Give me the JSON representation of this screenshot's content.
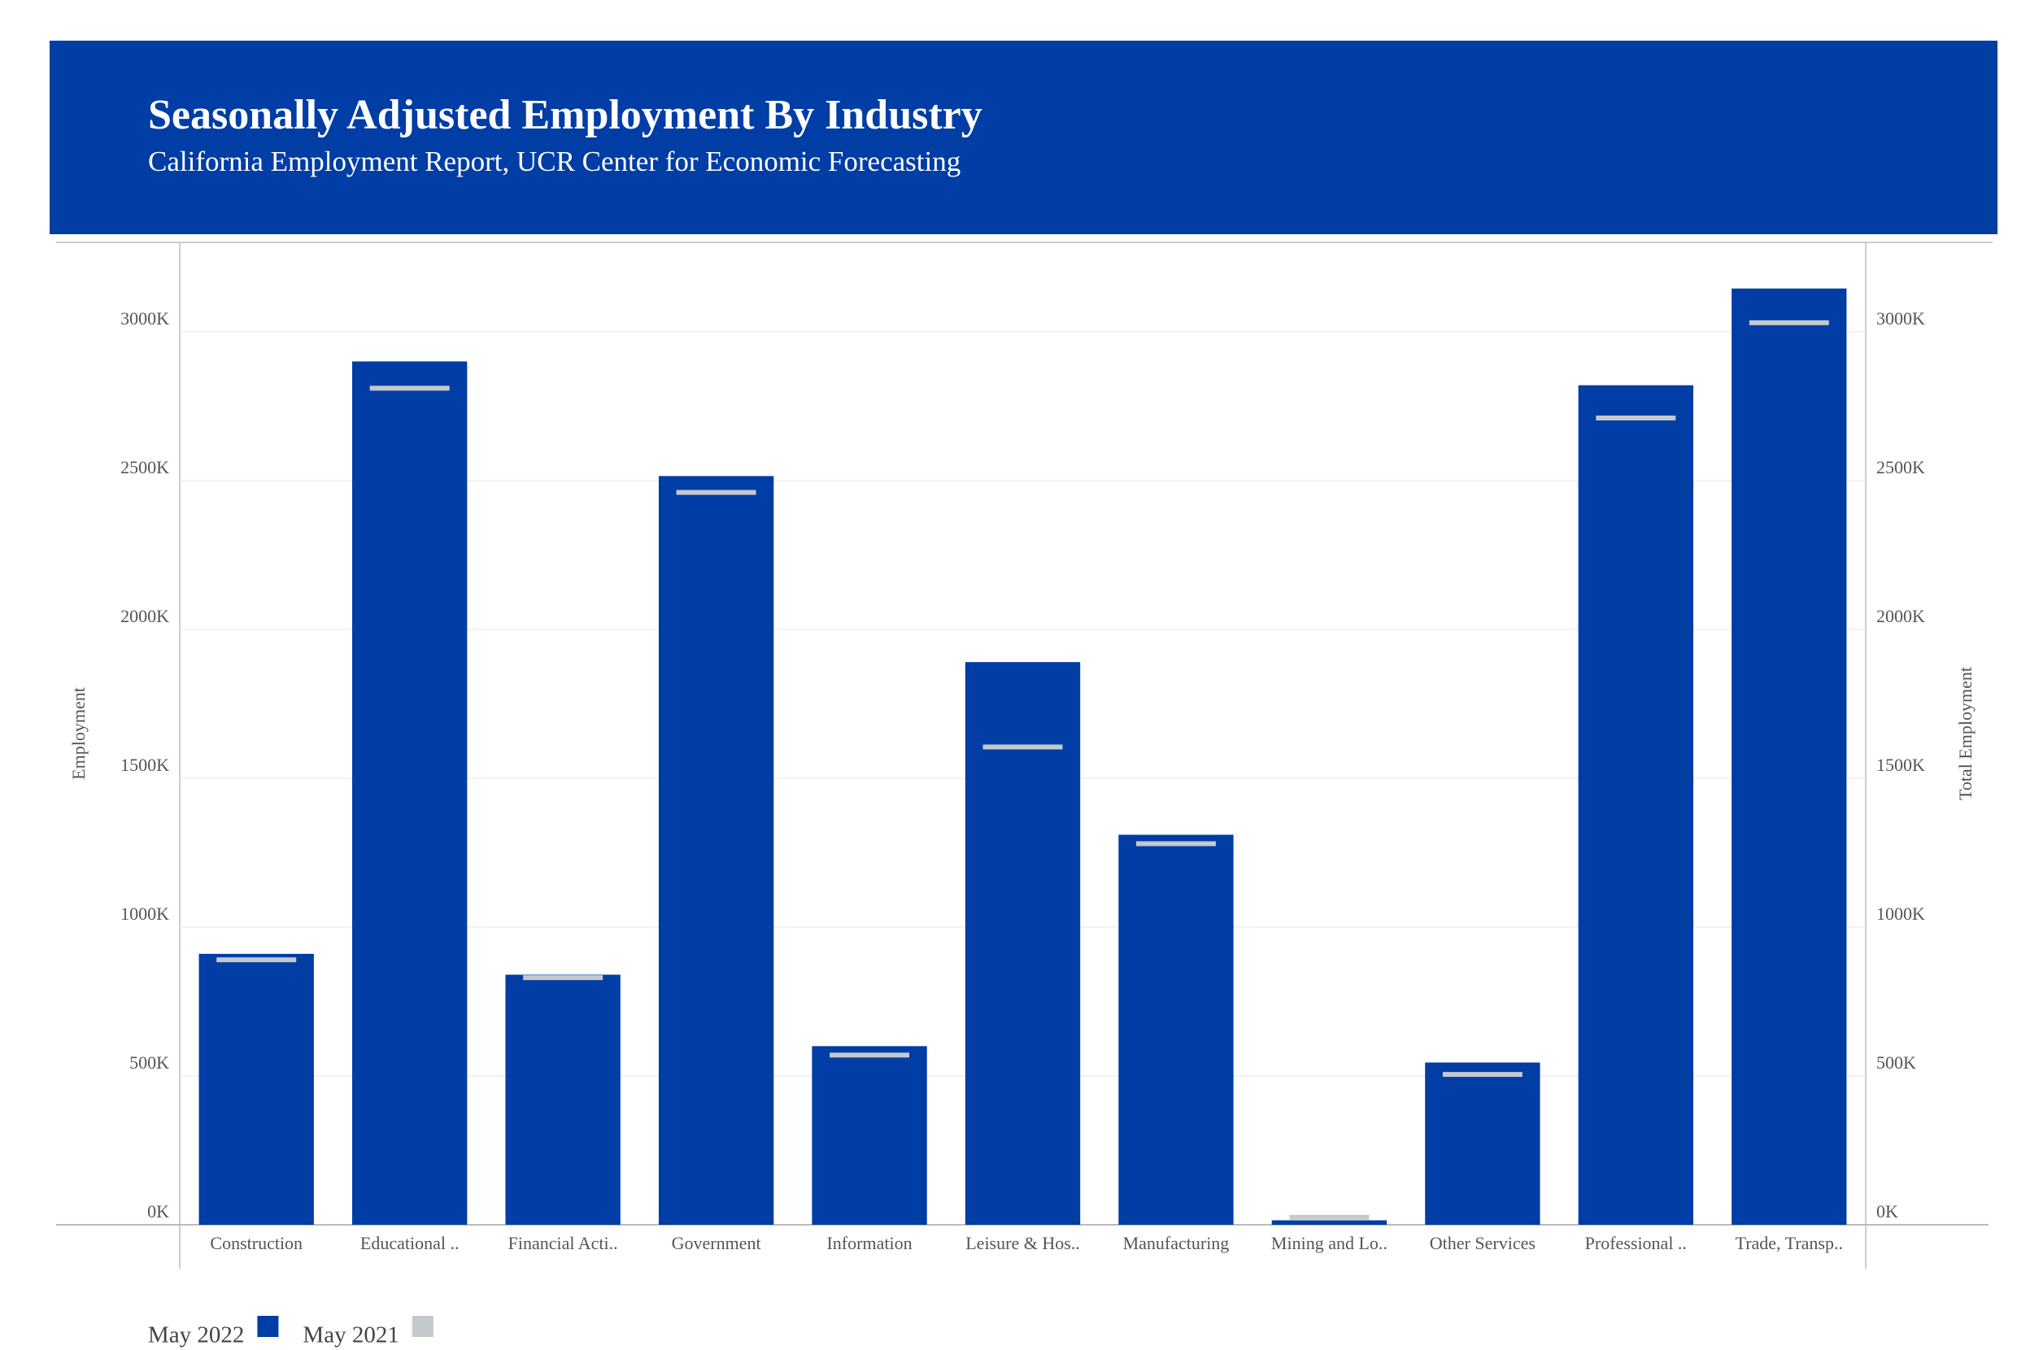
{
  "chart_data": {
    "type": "bar",
    "title": "Seasonally Adjusted Employment By Industry",
    "subtitle": "California Employment Report, UCR Center for Economic Forecasting",
    "y_label": "Employment",
    "y2_label": "Total Employment",
    "categories": [
      "Construction",
      "Educational ..",
      "Financial Acti..",
      "Government",
      "Information",
      "Leisure & Hos..",
      "Manufacturing",
      "Mining and Lo..",
      "Other Services",
      "Professional ..",
      "Trade, Transp.."
    ],
    "series": [
      {
        "name": "May 2022",
        "color": "#003da5",
        "values": [
          910,
          2900,
          840,
          2515,
          600,
          1890,
          1310,
          15,
          545,
          2820,
          3145
        ]
      },
      {
        "name": "May 2021",
        "color": "#c5c9cc",
        "axis": "y2",
        "values": [
          890,
          2810,
          830,
          2460,
          570,
          1605,
          1280,
          25,
          505,
          2710,
          3030
        ]
      }
    ],
    "ylim": [
      0,
      3300
    ],
    "yticks": [
      {
        "value": 0,
        "label": "0K"
      },
      {
        "value": 500,
        "label": "500K"
      },
      {
        "value": 1000,
        "label": "1000K"
      },
      {
        "value": 1500,
        "label": "1500K"
      },
      {
        "value": 2000,
        "label": "2000K"
      },
      {
        "value": 2500,
        "label": "2500K"
      },
      {
        "value": 3000,
        "label": "3000K"
      }
    ],
    "y2lim": [
      0,
      3300
    ],
    "y2ticks": [
      {
        "value": 0,
        "label": "0K"
      },
      {
        "value": 500,
        "label": "500K"
      },
      {
        "value": 1000,
        "label": "1000K"
      },
      {
        "value": 1500,
        "label": "1500K"
      },
      {
        "value": 2000,
        "label": "2000K"
      },
      {
        "value": 2500,
        "label": "2500K"
      },
      {
        "value": 3000,
        "label": "3000K"
      }
    ],
    "grid": true,
    "legend": "bottom-left"
  }
}
